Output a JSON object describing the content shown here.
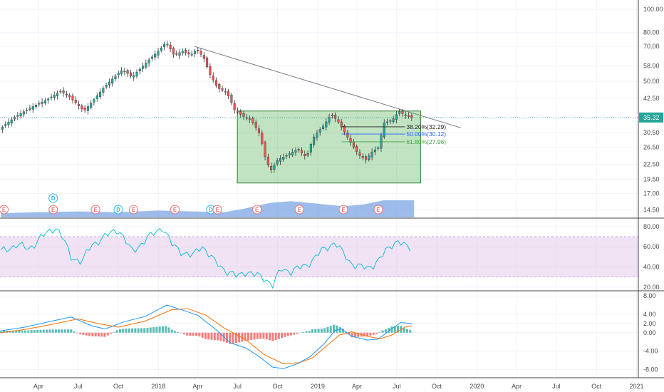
{
  "colors": {
    "up": "#26a69a",
    "down": "#ef5350",
    "wick": "#333333",
    "zone_fill": "#4caf50",
    "zone_stroke": "#2e7d32",
    "trendline": "#787b86",
    "volume": "#5b8fde",
    "rsi_line": "#00bcd4",
    "rsi_band": "#e1bee7",
    "macd_line": "#2196f3",
    "signal_line": "#ff6d00",
    "price_tag": "#26a69a",
    "fib_382": "#222222",
    "fib_500": "#2962ff",
    "fib_618": "#43a047",
    "event_earnings": "#e57373",
    "event_dividend": "#29b6f6",
    "grid": "#f0f3fa",
    "separator": "#444444"
  },
  "chart_data": {
    "type": "candlestick",
    "price_axis": {
      "scale": "log",
      "ticks": [
        "100.00",
        "80.00",
        "70.00",
        "58.00",
        "50.00",
        "42.50",
        "35.00",
        "30.50",
        "26.50",
        "22.50",
        "19.50",
        "17.00",
        "14.50"
      ],
      "range": [
        13.5,
        108
      ]
    },
    "x_axis": {
      "ticks": [
        "Apr",
        "Jul",
        "Oct",
        "2018",
        "Apr",
        "Jul",
        "Oct",
        "2019",
        "Apr",
        "Jul",
        "Oct",
        "2020",
        "Apr",
        "Jul",
        "Oct",
        "2021"
      ],
      "dates": [
        "2017-04-01",
        "2017-07-01",
        "2017-10-01",
        "2018-01-01",
        "2018-04-01",
        "2018-07-01",
        "2018-10-01",
        "2019-01-01",
        "2019-04-01",
        "2019-07-01",
        "2019-10-01",
        "2020-01-01",
        "2020-04-01",
        "2020-07-01",
        "2020-10-01",
        "2021-01-01"
      ],
      "range": [
        "2017-01-03",
        "2021-01-05"
      ]
    },
    "last_price": "35.32",
    "price_path": [
      [
        "2017-01-05",
        31.5
      ],
      [
        "2017-02-15",
        36.0
      ],
      [
        "2017-03-20",
        39.0
      ],
      [
        "2017-04-25",
        42.0
      ],
      [
        "2017-05-25",
        45.5
      ],
      [
        "2017-06-15",
        43.0
      ],
      [
        "2017-06-30",
        40.5
      ],
      [
        "2017-07-18",
        37.5
      ],
      [
        "2017-08-10",
        42.0
      ],
      [
        "2017-09-01",
        47.0
      ],
      [
        "2017-09-25",
        52.0
      ],
      [
        "2017-10-15",
        56.0
      ],
      [
        "2017-11-05",
        52.0
      ],
      [
        "2017-11-30",
        58.0
      ],
      [
        "2017-12-20",
        63.0
      ],
      [
        "2018-01-08",
        68.0
      ],
      [
        "2018-01-22",
        73.0
      ],
      [
        "2018-02-10",
        64.0
      ],
      [
        "2018-02-28",
        67.0
      ],
      [
        "2018-03-20",
        64.5
      ],
      [
        "2018-04-02",
        68.0
      ],
      [
        "2018-04-18",
        63.0
      ],
      [
        "2018-05-01",
        54.0
      ],
      [
        "2018-05-20",
        47.0
      ],
      [
        "2018-06-10",
        45.0
      ],
      [
        "2018-06-28",
        38.0
      ],
      [
        "2018-07-20",
        35.5
      ],
      [
        "2018-08-05",
        34.5
      ],
      [
        "2018-08-25",
        30.0
      ],
      [
        "2018-09-05",
        24.5
      ],
      [
        "2018-09-18",
        21.0
      ],
      [
        "2018-10-05",
        23.5
      ],
      [
        "2018-10-25",
        24.5
      ],
      [
        "2018-11-20",
        26.0
      ],
      [
        "2018-12-10",
        24.0
      ],
      [
        "2018-12-25",
        29.0
      ],
      [
        "2019-01-20",
        33.0
      ],
      [
        "2019-02-05",
        36.5
      ],
      [
        "2019-02-20",
        34.0
      ],
      [
        "2019-03-10",
        30.0
      ],
      [
        "2019-03-25",
        27.0
      ],
      [
        "2019-04-10",
        24.5
      ],
      [
        "2019-04-25",
        23.5
      ],
      [
        "2019-05-10",
        25.5
      ],
      [
        "2019-05-25",
        26.5
      ],
      [
        "2019-06-05",
        33.5
      ],
      [
        "2019-06-25",
        34.5
      ],
      [
        "2019-07-10",
        37.5
      ],
      [
        "2019-07-25",
        36.0
      ],
      [
        "2019-08-05",
        35.32
      ]
    ],
    "annotations": {
      "trendline": [
        [
          "2018-03-25",
          70.0
        ],
        [
          "2019-11-25",
          32.0
        ]
      ],
      "zone": {
        "x": [
          "2018-07-01",
          "2019-08-25"
        ],
        "y": [
          18.8,
          37.6
        ]
      },
      "fib_levels": [
        {
          "label": "38.20%(32.29)",
          "value": 32.29,
          "x": [
            "2019-02-25",
            "2019-07-20"
          ]
        },
        {
          "label": "50.00%(30.12)",
          "value": 30.12,
          "x": [
            "2019-02-25",
            "2019-07-20"
          ]
        },
        {
          "label": "61.80%(27.96)",
          "value": 27.96,
          "x": [
            "2019-02-25",
            "2019-07-20"
          ]
        }
      ]
    },
    "volume_path": [
      [
        "2017-01-05",
        0.25
      ],
      [
        "2017-04-01",
        0.3
      ],
      [
        "2017-07-01",
        0.35
      ],
      [
        "2017-10-01",
        0.3
      ],
      [
        "2018-01-01",
        0.4
      ],
      [
        "2018-03-20",
        0.35
      ],
      [
        "2018-06-01",
        0.3
      ],
      [
        "2018-07-15",
        0.5
      ],
      [
        "2018-09-15",
        0.85
      ],
      [
        "2018-11-01",
        0.95
      ],
      [
        "2019-01-01",
        0.8
      ],
      [
        "2019-03-01",
        0.65
      ],
      [
        "2019-04-15",
        0.75
      ],
      [
        "2019-06-01",
        1.0
      ],
      [
        "2019-08-10",
        1.0
      ]
    ],
    "events": [
      {
        "label": "E",
        "kind": "earnings",
        "date": "2017-01-12"
      },
      {
        "label": "D",
        "kind": "dividend",
        "date": "2017-05-05",
        "stack": 1
      },
      {
        "label": "E",
        "kind": "earnings",
        "date": "2017-05-05"
      },
      {
        "label": "E",
        "kind": "earnings",
        "date": "2017-08-10"
      },
      {
        "label": "D",
        "kind": "dividend",
        "date": "2017-10-01"
      },
      {
        "label": "E",
        "kind": "earnings",
        "date": "2017-11-05"
      },
      {
        "label": "E",
        "kind": "earnings",
        "date": "2018-02-08"
      },
      {
        "label": "D",
        "kind": "dividend",
        "date": "2018-05-01"
      },
      {
        "label": "E",
        "kind": "earnings",
        "date": "2018-05-16"
      },
      {
        "label": "E",
        "kind": "earnings",
        "date": "2018-08-15"
      },
      {
        "label": "E",
        "kind": "earnings",
        "date": "2018-11-20"
      },
      {
        "label": "E",
        "kind": "earnings",
        "date": "2019-03-01"
      },
      {
        "label": "E",
        "kind": "earnings",
        "date": "2019-05-20"
      }
    ],
    "rsi": {
      "ticks": [
        "80.00",
        "60.00",
        "40.00",
        "20.00"
      ],
      "range": [
        17,
        87
      ],
      "band": [
        30,
        70
      ],
      "path": [
        [
          "2017-01-05",
          55
        ],
        [
          "2017-02-10",
          62
        ],
        [
          "2017-03-10",
          58
        ],
        [
          "2017-04-10",
          70
        ],
        [
          "2017-05-10",
          80
        ],
        [
          "2017-05-25",
          70
        ],
        [
          "2017-06-15",
          50
        ],
        [
          "2017-07-10",
          45
        ],
        [
          "2017-08-01",
          62
        ],
        [
          "2017-09-01",
          70
        ],
        [
          "2017-10-01",
          78
        ],
        [
          "2017-11-01",
          55
        ],
        [
          "2017-12-01",
          66
        ],
        [
          "2018-01-10",
          80
        ],
        [
          "2018-02-01",
          62
        ],
        [
          "2018-02-25",
          55
        ],
        [
          "2018-03-20",
          50
        ],
        [
          "2018-04-10",
          62
        ],
        [
          "2018-05-10",
          45
        ],
        [
          "2018-06-10",
          35
        ],
        [
          "2018-07-01",
          30
        ],
        [
          "2018-07-20",
          36
        ],
        [
          "2018-08-10",
          32
        ],
        [
          "2018-09-05",
          28
        ],
        [
          "2018-09-20",
          22
        ],
        [
          "2018-10-10",
          38
        ],
        [
          "2018-11-01",
          36
        ],
        [
          "2018-12-05",
          41
        ],
        [
          "2018-12-31",
          52
        ],
        [
          "2019-01-25",
          60
        ],
        [
          "2019-02-10",
          65
        ],
        [
          "2019-02-25",
          55
        ],
        [
          "2019-03-15",
          45
        ],
        [
          "2019-04-10",
          40
        ],
        [
          "2019-04-25",
          38
        ],
        [
          "2019-05-15",
          45
        ],
        [
          "2019-06-01",
          52
        ],
        [
          "2019-06-20",
          62
        ],
        [
          "2019-07-05",
          67
        ],
        [
          "2019-07-20",
          60
        ],
        [
          "2019-08-05",
          57
        ]
      ]
    },
    "macd": {
      "ticks": [
        "8.00",
        "4.00",
        "2.00",
        "0.00",
        "-4.00",
        "-8.00"
      ],
      "range": [
        -9.8,
        8.8
      ],
      "macd_path": [
        [
          "2017-01-05",
          0.4
        ],
        [
          "2017-03-01",
          1.2
        ],
        [
          "2017-05-01",
          2.5
        ],
        [
          "2017-06-15",
          3.4
        ],
        [
          "2017-08-01",
          1.5
        ],
        [
          "2017-09-01",
          0.8
        ],
        [
          "2017-10-15",
          2.4
        ],
        [
          "2017-12-01",
          3.5
        ],
        [
          "2018-01-20",
          6.0
        ],
        [
          "2018-03-01",
          4.8
        ],
        [
          "2018-04-01",
          3.8
        ],
        [
          "2018-05-15",
          0.5
        ],
        [
          "2018-06-15",
          -2.2
        ],
        [
          "2018-07-20",
          -3.3
        ],
        [
          "2018-08-20",
          -5.2
        ],
        [
          "2018-09-20",
          -7.5
        ],
        [
          "2018-10-15",
          -7.8
        ],
        [
          "2018-11-15",
          -6.8
        ],
        [
          "2018-12-15",
          -5.2
        ],
        [
          "2019-01-15",
          -2.5
        ],
        [
          "2019-02-10",
          0.5
        ],
        [
          "2019-02-25",
          0.8
        ],
        [
          "2019-03-20",
          -0.8
        ],
        [
          "2019-04-25",
          -1.6
        ],
        [
          "2019-05-20",
          -1.4
        ],
        [
          "2019-06-15",
          0.5
        ],
        [
          "2019-07-10",
          2.2
        ],
        [
          "2019-08-05",
          2.0
        ]
      ],
      "signal_path": [
        [
          "2017-01-05",
          0.0
        ],
        [
          "2017-03-01",
          0.7
        ],
        [
          "2017-05-01",
          1.8
        ],
        [
          "2017-07-01",
          3.0
        ],
        [
          "2017-08-15",
          2.0
        ],
        [
          "2017-10-01",
          1.2
        ],
        [
          "2017-12-01",
          2.5
        ],
        [
          "2018-02-01",
          5.0
        ],
        [
          "2018-03-10",
          5.2
        ],
        [
          "2018-04-20",
          3.8
        ],
        [
          "2018-06-01",
          1.0
        ],
        [
          "2018-07-20",
          -1.5
        ],
        [
          "2018-09-01",
          -4.8
        ],
        [
          "2018-10-15",
          -6.8
        ],
        [
          "2018-11-20",
          -6.5
        ],
        [
          "2018-12-20",
          -5.5
        ],
        [
          "2019-01-20",
          -3.0
        ],
        [
          "2019-02-20",
          -0.5
        ],
        [
          "2019-03-20",
          0.2
        ],
        [
          "2019-04-25",
          -0.8
        ],
        [
          "2019-05-25",
          -1.3
        ],
        [
          "2019-06-20",
          -0.5
        ],
        [
          "2019-07-20",
          1.2
        ],
        [
          "2019-08-05",
          1.5
        ]
      ]
    }
  }
}
